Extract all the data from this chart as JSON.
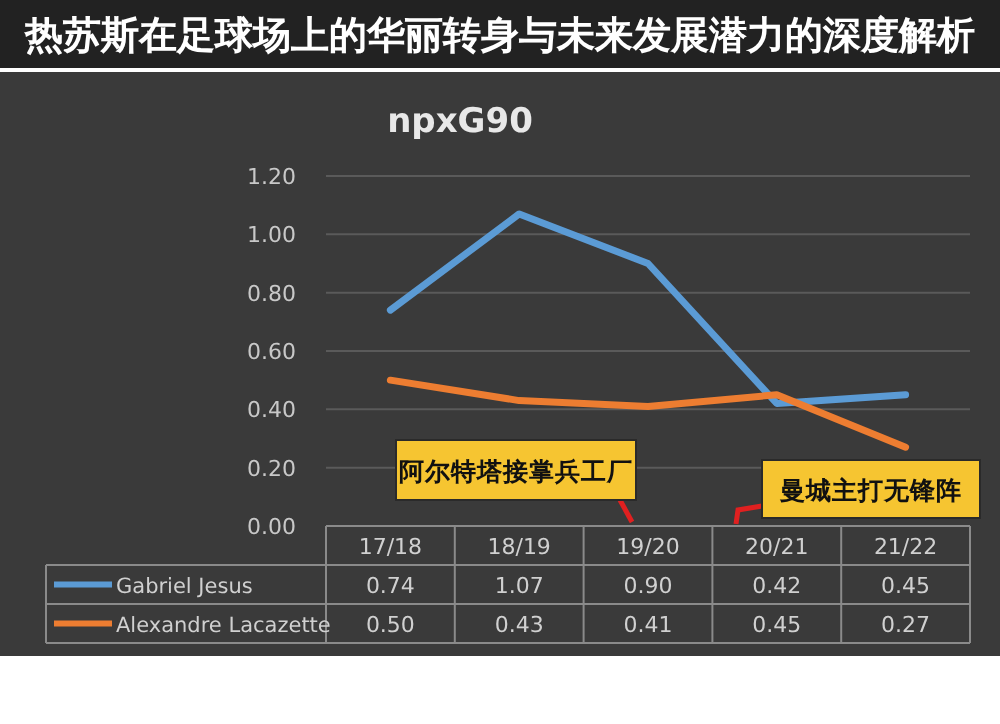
{
  "chart_data": {
    "type": "line",
    "title": "npxG90",
    "subtitle": "热苏斯在足球场上的华丽转身与未来发展潜力的深度解析",
    "categories": [
      "17/18",
      "18/19",
      "19/20",
      "20/21",
      "21/22"
    ],
    "series": [
      {
        "name": "Gabriel Jesus",
        "color": "#5b9bd5",
        "values": [
          0.74,
          1.07,
          0.9,
          0.42,
          0.45
        ],
        "value_labels": [
          "0.74",
          "1.07",
          "0.90",
          "0.42",
          "0.45"
        ]
      },
      {
        "name": "Alexandre Lacazette",
        "color": "#ed7d31",
        "values": [
          0.5,
          0.43,
          0.41,
          0.45,
          0.27
        ],
        "value_labels": [
          "0.50",
          "0.43",
          "0.41",
          "0.45",
          "0.27"
        ]
      }
    ],
    "annotations": [
      "阿尔特塔接掌兵工厂",
      "曼城主打无锋阵"
    ],
    "ylim": [
      0,
      1.2
    ],
    "yticks": [
      {
        "value": 0,
        "label": "0.00"
      },
      {
        "value": 0.2,
        "label": "0.20"
      },
      {
        "value": 0.4,
        "label": "0.40"
      },
      {
        "value": 0.6,
        "label": "0.60"
      },
      {
        "value": 0.8,
        "label": "0.80"
      },
      {
        "value": 1,
        "label": "1.00"
      },
      {
        "value": 1.2,
        "label": "1.20"
      }
    ],
    "grid": "y",
    "legend": "bottom",
    "marker": "none",
    "line_style": "solid"
  }
}
